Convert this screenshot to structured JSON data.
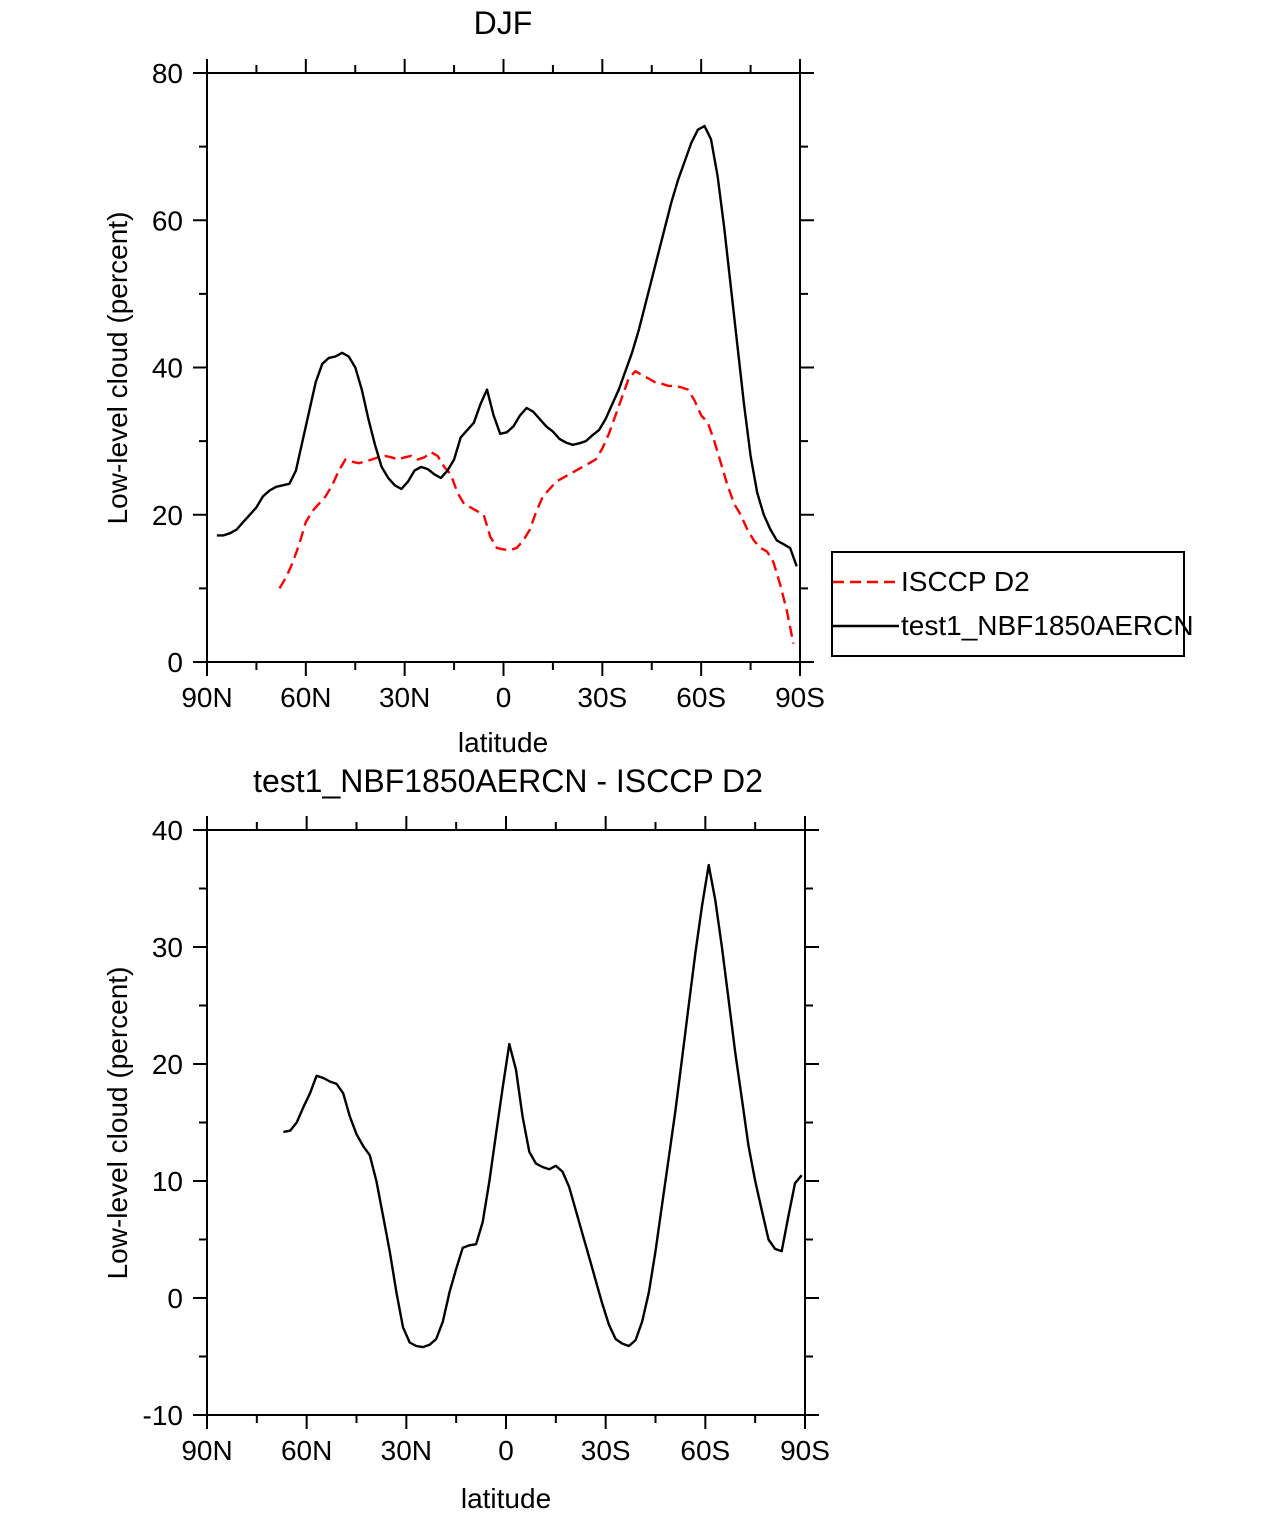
{
  "page": {
    "background": "#ffffff"
  },
  "chart_data": "see charts",
  "charts": [
    {
      "id": "djf",
      "type": "line",
      "title": "DJF",
      "xlabel": "latitude",
      "ylabel": "Low-level cloud (percent)",
      "xlim": [
        90,
        -90
      ],
      "ylim": [
        0,
        80
      ],
      "grid": false,
      "legend_position": "outside-right",
      "xticks": [
        {
          "v": 90,
          "label": "90N"
        },
        {
          "v": 60,
          "label": "60N"
        },
        {
          "v": 30,
          "label": "30N"
        },
        {
          "v": 0,
          "label": "0"
        },
        {
          "v": -30,
          "label": "30S"
        },
        {
          "v": -60,
          "label": "60S"
        },
        {
          "v": -90,
          "label": "90S"
        }
      ],
      "x_minor": [
        75,
        45,
        15,
        -15,
        -45,
        -75
      ],
      "yticks": [
        {
          "v": 0,
          "label": "0"
        },
        {
          "v": 20,
          "label": "20"
        },
        {
          "v": 40,
          "label": "40"
        },
        {
          "v": 60,
          "label": "60"
        },
        {
          "v": 80,
          "label": "80"
        }
      ],
      "y_minor": [
        10,
        30,
        50,
        70
      ],
      "series": [
        {
          "name": "ISCCP D2",
          "color": "#ff0000",
          "dash": "11 6",
          "x": [
            68,
            66,
            64,
            62,
            60,
            58,
            56,
            54,
            52,
            50,
            48,
            46,
            44,
            42,
            40,
            38,
            36,
            34,
            32,
            30,
            28,
            26,
            24,
            22,
            20,
            18,
            16,
            14,
            12,
            10,
            8,
            6,
            4,
            2,
            0,
            -2,
            -4,
            -6,
            -8,
            -10,
            -12,
            -14,
            -16,
            -18,
            -20,
            -22,
            -24,
            -26,
            -28,
            -30,
            -32,
            -34,
            -36,
            -38,
            -40,
            -42,
            -44,
            -46,
            -48,
            -50,
            -52,
            -54,
            -56,
            -58,
            -60,
            -62,
            -64,
            -66,
            -68,
            -70,
            -72,
            -74,
            -76,
            -78,
            -80,
            -82,
            -84,
            -86,
            -88
          ],
          "y": [
            10,
            11.5,
            13.5,
            16,
            19,
            20.5,
            21.5,
            22.5,
            24,
            26,
            27.5,
            27.2,
            27,
            27.2,
            27.5,
            27.8,
            28,
            27.8,
            27.5,
            27.8,
            28,
            27.5,
            27.8,
            28.5,
            28,
            26.5,
            25.5,
            23,
            21.5,
            21,
            20.5,
            20,
            17,
            15.5,
            15.3,
            15.2,
            15.5,
            16.5,
            18,
            20.5,
            22.5,
            23.5,
            24.5,
            25,
            25.5,
            26,
            26.5,
            27,
            27.5,
            29,
            31,
            33.5,
            36,
            38.5,
            39.5,
            39,
            38.5,
            38,
            37.8,
            37.5,
            37.5,
            37.3,
            37,
            35.5,
            33.5,
            32.5,
            30,
            27,
            24,
            21.5,
            20,
            18,
            16.5,
            15.5,
            15,
            13.5,
            10.5,
            7,
            2.5
          ]
        },
        {
          "name": "test1_NBF1850AERCN",
          "color": "#000000",
          "dash": "",
          "x": [
            87,
            85,
            83,
            81,
            79,
            77,
            75,
            73,
            71,
            69,
            67,
            65,
            63,
            61,
            59,
            57,
            55,
            53,
            51,
            49,
            47,
            45,
            43,
            41,
            39,
            37,
            35,
            33,
            31,
            29,
            27,
            25,
            23,
            21,
            19,
            17,
            15,
            13,
            11,
            9,
            7,
            5,
            3,
            1,
            -1,
            -3,
            -5,
            -7,
            -9,
            -11,
            -13,
            -15,
            -17,
            -19,
            -21,
            -23,
            -25,
            -27,
            -29,
            -31,
            -33,
            -35,
            -37,
            -39,
            -41,
            -43,
            -45,
            -47,
            -49,
            -51,
            -53,
            -55,
            -57,
            -59,
            -61,
            -63,
            -65,
            -67,
            -69,
            -71,
            -73,
            -75,
            -77,
            -79,
            -81,
            -83,
            -85,
            -87,
            -89
          ],
          "y": [
            17.2,
            17.2,
            17.5,
            18,
            19,
            20,
            21,
            22.5,
            23.3,
            23.8,
            24,
            24.2,
            26,
            30,
            34,
            38,
            40.5,
            41.3,
            41.5,
            42,
            41.5,
            40,
            37,
            33,
            29.5,
            26.5,
            25,
            24,
            23.5,
            24.5,
            26,
            26.5,
            26.2,
            25.5,
            25,
            26,
            27.5,
            30.5,
            31.5,
            32.5,
            35,
            37,
            33.5,
            31,
            31.2,
            32,
            33.5,
            34.5,
            34,
            33,
            32,
            31.3,
            30.3,
            29.8,
            29.5,
            29.7,
            30,
            30.8,
            31.5,
            33,
            35,
            37,
            39.5,
            42,
            45,
            48.5,
            52,
            55.5,
            59,
            62.5,
            65.5,
            68,
            70.5,
            72.3,
            72.8,
            71,
            66,
            59,
            51,
            43,
            35,
            28,
            23,
            20,
            18,
            16.5,
            16,
            15.5,
            13
          ]
        }
      ]
    },
    {
      "id": "difference",
      "type": "line",
      "title": "test1_NBF1850AERCN - ISCCP D2",
      "xlabel": "latitude",
      "ylabel": "Low-level cloud (percent)",
      "xlim": [
        90,
        -90
      ],
      "ylim": [
        -10,
        40
      ],
      "grid": false,
      "xticks": [
        {
          "v": 90,
          "label": "90N"
        },
        {
          "v": 60,
          "label": "60N"
        },
        {
          "v": 30,
          "label": "30N"
        },
        {
          "v": 0,
          "label": "0"
        },
        {
          "v": -30,
          "label": "30S"
        },
        {
          "v": -60,
          "label": "60S"
        },
        {
          "v": -90,
          "label": "90S"
        }
      ],
      "x_minor": [
        75,
        45,
        15,
        -15,
        -45,
        -75
      ],
      "yticks": [
        {
          "v": -10,
          "label": "-10"
        },
        {
          "v": 0,
          "label": "0"
        },
        {
          "v": 10,
          "label": "10"
        },
        {
          "v": 20,
          "label": "20"
        },
        {
          "v": 30,
          "label": "30"
        },
        {
          "v": 40,
          "label": "40"
        }
      ],
      "y_minor": [
        -5,
        5,
        15,
        25,
        35
      ],
      "series": [
        {
          "name": "test1_NBF1850AERCN - ISCCP D2",
          "color": "#000000",
          "dash": "",
          "x": [
            67,
            65,
            63,
            61,
            59,
            57,
            55,
            53,
            51,
            49,
            47,
            45,
            43,
            41,
            39,
            37,
            35,
            33,
            31,
            29,
            27,
            25,
            23,
            21,
            19,
            17,
            15,
            13,
            11,
            9,
            7,
            5,
            3,
            1,
            -1,
            -3,
            -5,
            -7,
            -9,
            -11,
            -13,
            -15,
            -17,
            -19,
            -21,
            -23,
            -25,
            -27,
            -29,
            -31,
            -33,
            -35,
            -37,
            -39,
            -41,
            -43,
            -45,
            -47,
            -49,
            -51,
            -53,
            -55,
            -57,
            -59,
            -61,
            -63,
            -65,
            -67,
            -69,
            -71,
            -73,
            -75,
            -77,
            -79,
            -81,
            -83,
            -85,
            -87,
            -89
          ],
          "y": [
            14.2,
            14.3,
            15,
            16.3,
            17.5,
            19,
            18.8,
            18.5,
            18.3,
            17.5,
            15.5,
            14,
            13,
            12.2,
            10,
            7,
            4,
            0.5,
            -2.5,
            -3.8,
            -4.1,
            -4.2,
            -4,
            -3.5,
            -2,
            0.5,
            2.5,
            4.3,
            4.5,
            4.6,
            6.5,
            10,
            14,
            18,
            21.7,
            19.5,
            15.5,
            12.5,
            11.5,
            11.2,
            11,
            11.3,
            10.8,
            9.5,
            7.5,
            5.5,
            3.5,
            1.5,
            -0.5,
            -2.3,
            -3.5,
            -3.9,
            -4.1,
            -3.6,
            -2,
            0.5,
            4,
            8,
            12,
            16,
            20.5,
            25,
            29.5,
            33.5,
            37,
            34,
            30,
            25.5,
            21,
            17,
            13,
            10,
            7.5,
            5,
            4.2,
            4,
            7,
            9.8,
            10.5
          ]
        }
      ]
    }
  ],
  "legend": {
    "entries": [
      "ISCCP D2",
      "test1_NBF1850AERCN"
    ]
  }
}
